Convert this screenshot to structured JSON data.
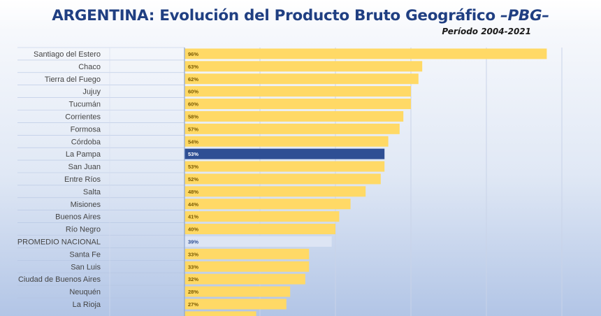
{
  "title": {
    "main": "ARGENTINA: Evolución del Producto Bruto Geográfico ",
    "pbg": "–PBG–",
    "subtitle": "Período 2004-2021"
  },
  "colors": {
    "bar_default": "#ffd966",
    "bar_highlight": "#2e4f94",
    "bar_average": "#dde5f4",
    "label_default": "#7a5a00",
    "label_highlight": "#ffffff",
    "label_average": "#2e4f94",
    "grid": "#c9d3e8",
    "divider": "#8ea6d0"
  },
  "chart_data": {
    "type": "bar",
    "orientation": "horizontal",
    "title": "ARGENTINA: Evolución del Producto Bruto Geográfico –PBG–",
    "subtitle": "Período 2004-2021",
    "xlim": [
      0,
      100
    ],
    "grid": true,
    "highlight": "La Pampa",
    "average": "PROMEDIO NACIONAL",
    "categories": [
      "Santiago del Estero",
      "Chaco",
      "Tierra del Fuego",
      "Jujuy",
      "Tucumán",
      "Corrientes",
      "Formosa",
      "Córdoba",
      "La Pampa",
      "San Juan",
      "Entre Ríos",
      "Salta",
      "Misiones",
      "Buenos Aires",
      "Río Negro",
      "PROMEDIO NACIONAL",
      "Santa Fe",
      "San Luis",
      "Ciudad de Buenos Aires",
      "Neuquén",
      "La Rioja"
    ],
    "values": [
      96,
      63,
      62,
      60,
      60,
      58,
      57,
      54,
      53,
      53,
      52,
      48,
      44,
      41,
      40,
      39,
      33,
      33,
      32,
      28,
      27
    ],
    "labels": [
      "96%",
      "63%",
      "62%",
      "60%",
      "60%",
      "58%",
      "57%",
      "54%",
      "53%",
      "53%",
      "52%",
      "48%",
      "44%",
      "41%",
      "40%",
      "39%",
      "33%",
      "33%",
      "32%",
      "28%",
      "27%"
    ],
    "partial_last_value": 19
  }
}
